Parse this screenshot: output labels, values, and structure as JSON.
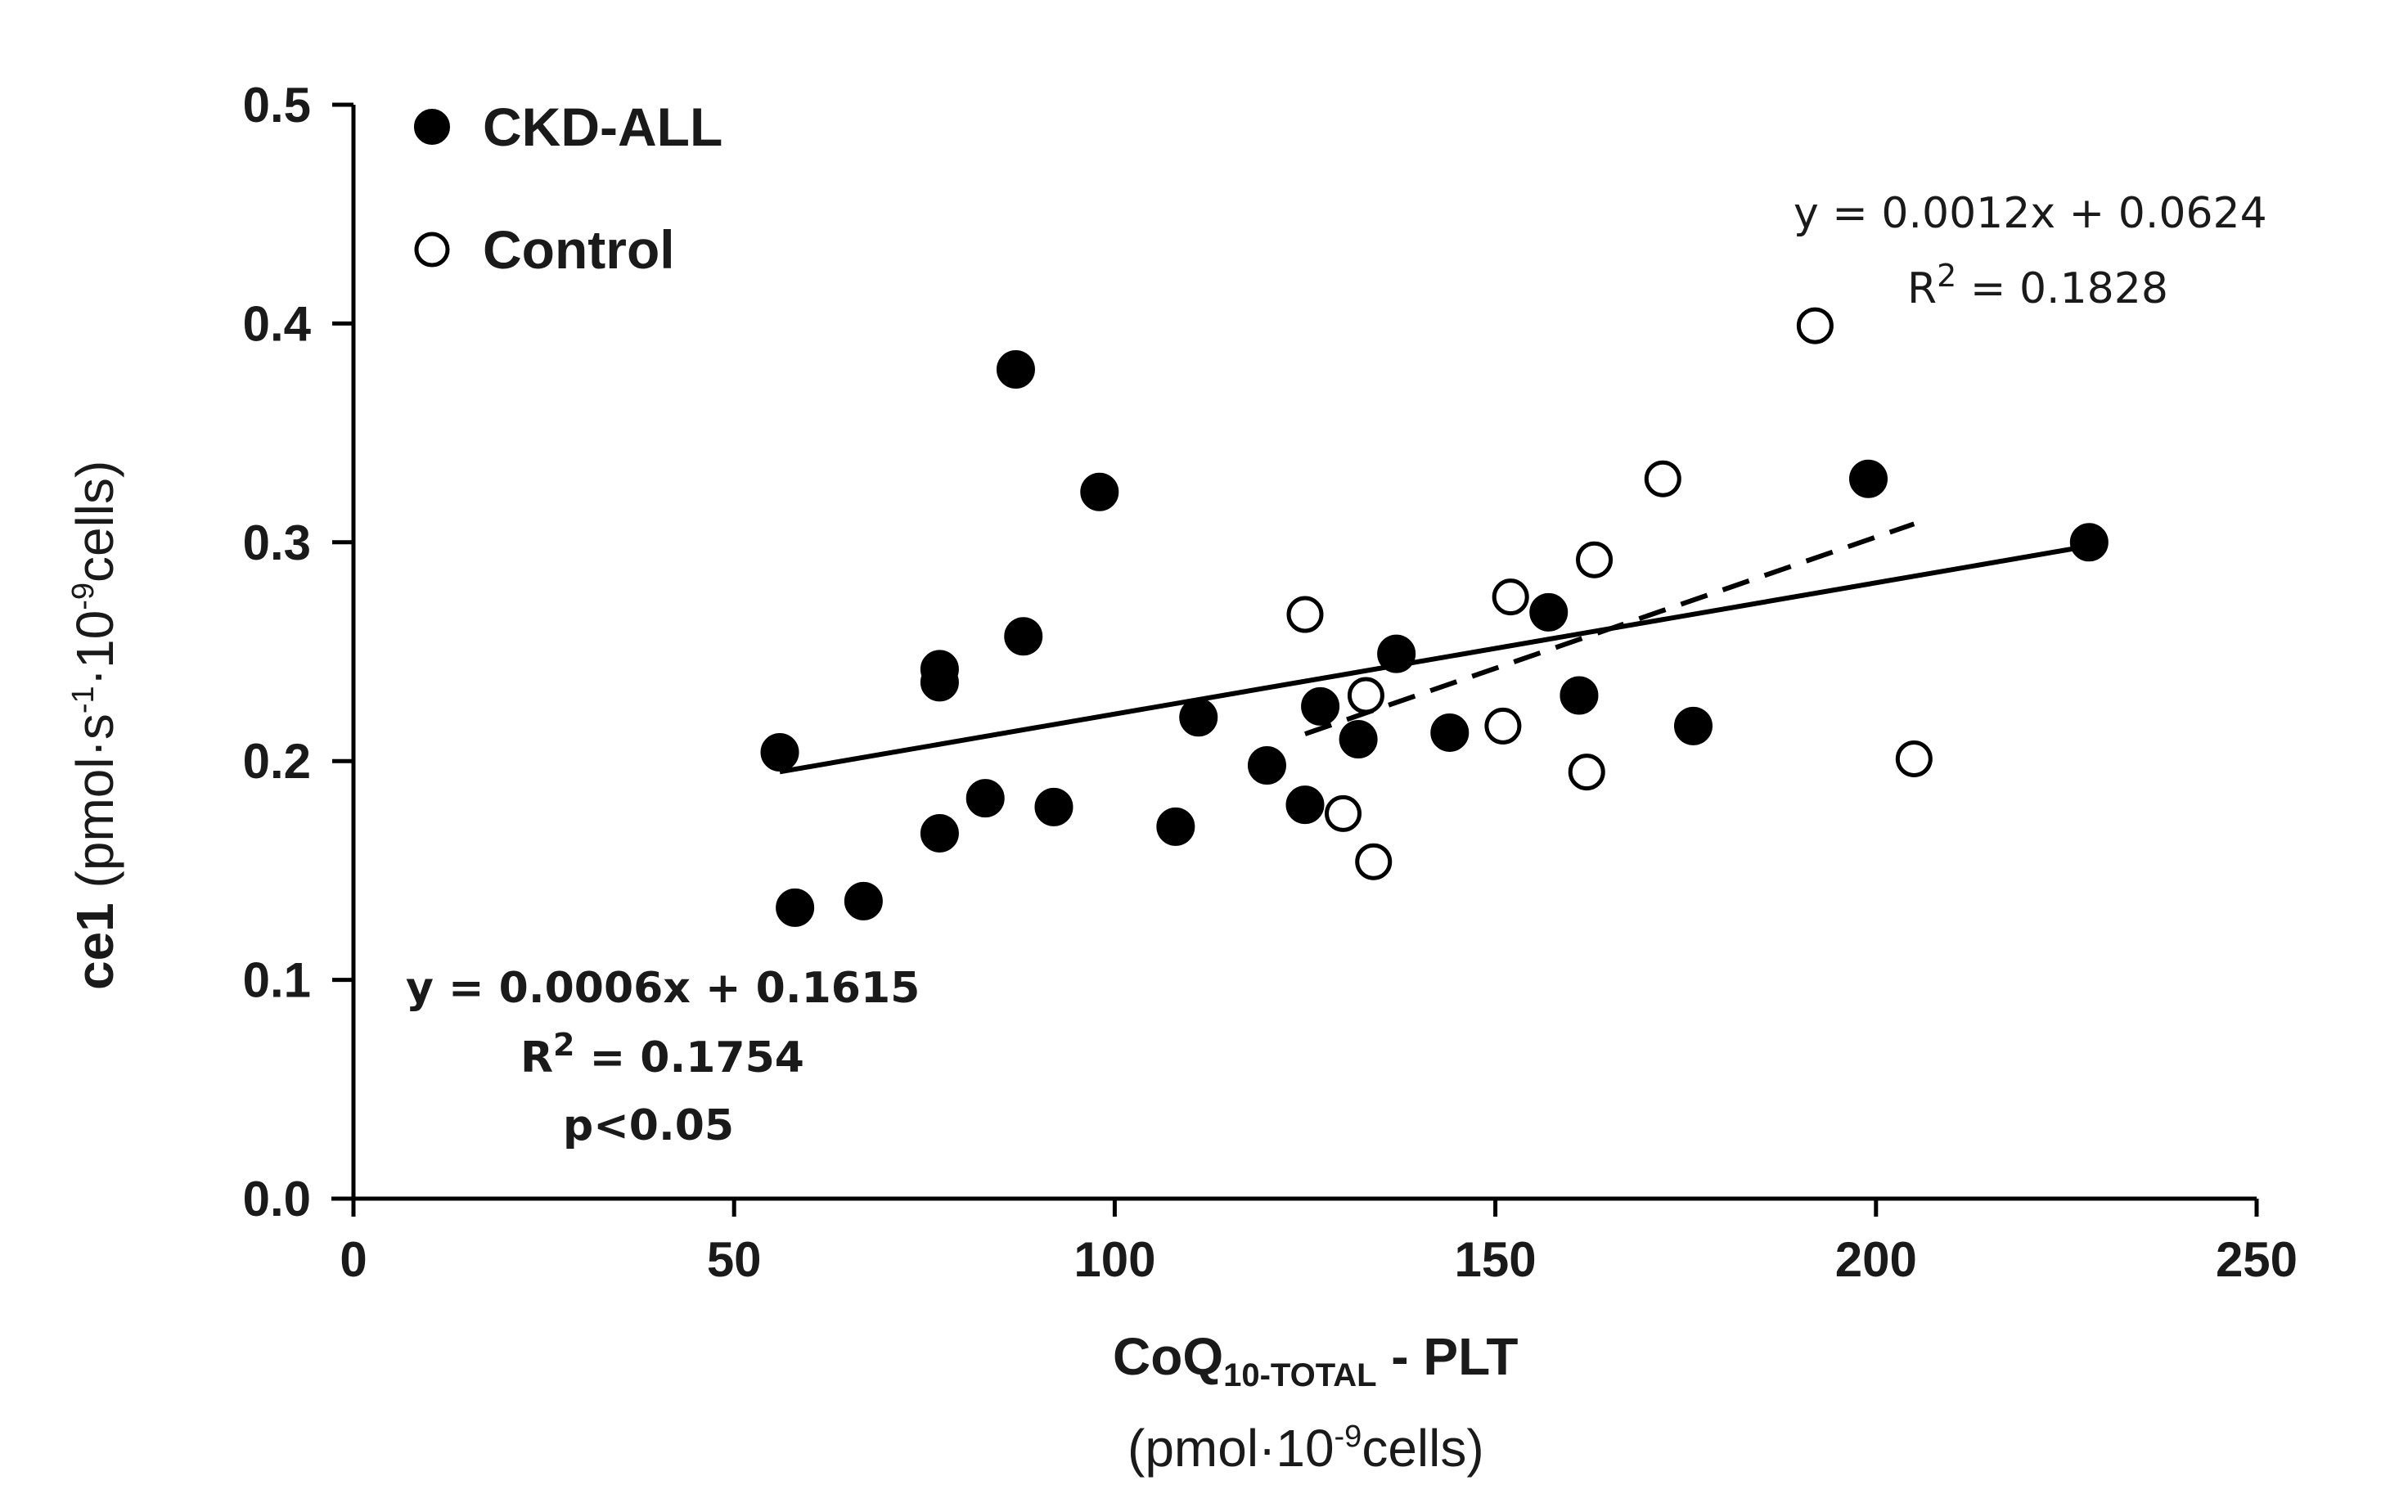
{
  "chart_data": {
    "type": "scatter",
    "xlabel": {
      "main": "CoQ",
      "subscript": "10-TOTAL",
      "suffix": " - PLT",
      "units_prefix": "(pmol·10",
      "units_sup": "-9",
      "units_suffix": "cells)"
    },
    "ylabel": {
      "main": "ce1",
      "units_prefix": " (pmol·s",
      "units_sup1": "-1",
      "units_mid": "·10",
      "units_sup2": "-9",
      "units_suffix": "cells)"
    },
    "xlim": [
      0,
      250
    ],
    "ylim": [
      0.0,
      0.5
    ],
    "xticks": [
      0,
      50,
      100,
      150,
      200,
      250
    ],
    "xtick_labels": [
      "0",
      "50",
      "100",
      "150",
      "200",
      "250"
    ],
    "yticks": [
      0.0,
      0.1,
      0.2,
      0.3,
      0.4,
      0.5
    ],
    "ytick_labels": [
      "0.0",
      "0.1",
      "0.2",
      "0.3",
      "0.4",
      "0.5"
    ],
    "grid": false,
    "legend_position": "top-left",
    "series": [
      {
        "name": "CKD-ALL",
        "marker": "filled-circle",
        "color": "#000000",
        "points": [
          [
            56,
            0.204
          ],
          [
            58,
            0.133
          ],
          [
            67,
            0.136
          ],
          [
            77,
            0.242
          ],
          [
            77,
            0.236
          ],
          [
            77,
            0.167
          ],
          [
            83,
            0.183
          ],
          [
            87,
            0.379
          ],
          [
            88,
            0.257
          ],
          [
            92,
            0.179
          ],
          [
            98,
            0.323
          ],
          [
            108,
            0.17
          ],
          [
            111,
            0.22
          ],
          [
            120,
            0.198
          ],
          [
            125,
            0.18
          ],
          [
            127,
            0.225
          ],
          [
            132,
            0.21
          ],
          [
            137,
            0.249
          ],
          [
            144,
            0.213
          ],
          [
            157,
            0.268
          ],
          [
            161,
            0.23
          ],
          [
            176,
            0.216
          ],
          [
            199,
            0.329
          ],
          [
            228,
            0.3
          ]
        ],
        "trendline": {
          "style": "solid",
          "x_range": [
            56,
            228
          ],
          "slope": 0.0006,
          "intercept": 0.1615,
          "equation": "y = 0.0006x + 0.1615",
          "r2_prefix": "R",
          "r2_sup": "2",
          "r2_value": " = 0.1754",
          "p_value": "p<0.05"
        }
      },
      {
        "name": "Control",
        "marker": "open-circle",
        "color": "#000000",
        "points": [
          [
            125,
            0.267
          ],
          [
            130,
            0.176
          ],
          [
            133,
            0.23
          ],
          [
            134,
            0.154
          ],
          [
            151,
            0.216
          ],
          [
            152,
            0.275
          ],
          [
            162,
            0.195
          ],
          [
            163,
            0.292
          ],
          [
            172,
            0.329
          ],
          [
            192,
            0.399
          ],
          [
            205,
            0.201
          ]
        ],
        "trendline": {
          "style": "dashed",
          "x_range": [
            125,
            205
          ],
          "slope": 0.0012,
          "intercept": 0.0624,
          "equation": "y = 0.0012x + 0.0624",
          "r2_prefix": "R",
          "r2_sup": "2",
          "r2_value": " = 0.1828"
        }
      }
    ]
  }
}
